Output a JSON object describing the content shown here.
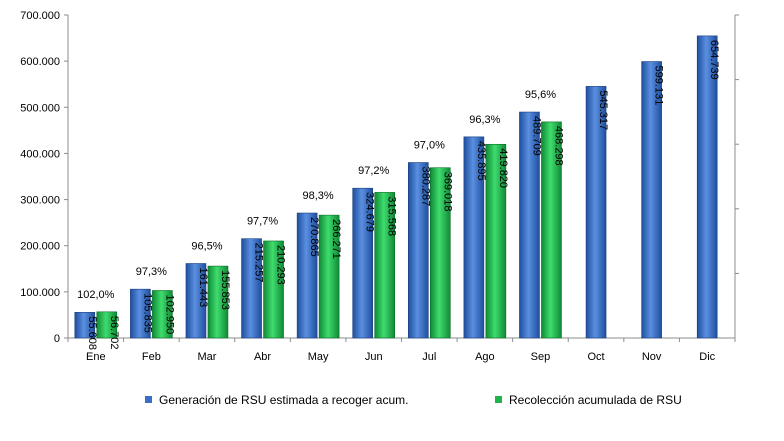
{
  "chart_data": {
    "type": "bar",
    "title": "",
    "xlabel": "",
    "ylabel": "",
    "ylim": [
      0,
      700000
    ],
    "yticks": [
      "0",
      "100.000",
      "200.000",
      "300.000",
      "400.000",
      "500.000",
      "600.000",
      "700.000"
    ],
    "categories": [
      "Ene",
      "Feb",
      "Mar",
      "Abr",
      "May",
      "Jun",
      "Jul",
      "Ago",
      "Sep",
      "Oct",
      "Nov",
      "Dic"
    ],
    "series": [
      {
        "name": "Generación de RSU estimada a recoger acum.",
        "color": "#3a6fc8",
        "values": [
          55608,
          105835,
          161443,
          215257,
          270865,
          324679,
          380287,
          435895,
          489709,
          545317,
          599131,
          654739
        ],
        "labels": [
          "55.608",
          "105.835",
          "161.443",
          "215.257",
          "270.865",
          "324.679",
          "380.287",
          "435.895",
          "489.709",
          "545.317",
          "599.131",
          "654.739"
        ]
      },
      {
        "name": "Recolección acumulada de RSU",
        "color": "#22b24c",
        "values": [
          56702,
          102950,
          155853,
          210293,
          266271,
          315568,
          369018,
          419820,
          468298,
          null,
          null,
          null
        ],
        "labels": [
          "56.702",
          "102.950",
          "155.853",
          "210.293",
          "266.271",
          "315.568",
          "369.018",
          "419.820",
          "468.298",
          "",
          "",
          ""
        ]
      }
    ],
    "percent_labels": [
      "102,0%",
      "97,3%",
      "96,5%",
      "97,7%",
      "98,3%",
      "97,2%",
      "97,0%",
      "96,3%",
      "95,6%",
      "",
      "",
      ""
    ],
    "grid": false,
    "legend_position": "bottom"
  }
}
